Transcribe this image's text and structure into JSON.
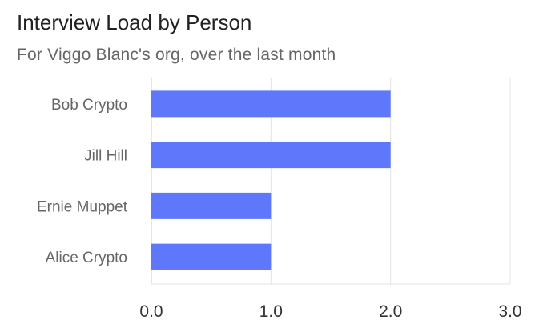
{
  "chart_data": {
    "type": "bar",
    "orientation": "horizontal",
    "title": "Interview Load by Person",
    "subtitle": "For Viggo Blanc's org, over the last month",
    "categories": [
      "Bob Crypto",
      "Jill Hill",
      "Ernie Muppet",
      "Alice Crypto"
    ],
    "values": [
      2,
      2,
      1,
      1
    ],
    "xlim": [
      0,
      3
    ],
    "xticks": [
      "0.0",
      "1.0",
      "2.0",
      "3.0"
    ],
    "grid": true,
    "legend": "none",
    "bar_color": "#5f77fb"
  }
}
